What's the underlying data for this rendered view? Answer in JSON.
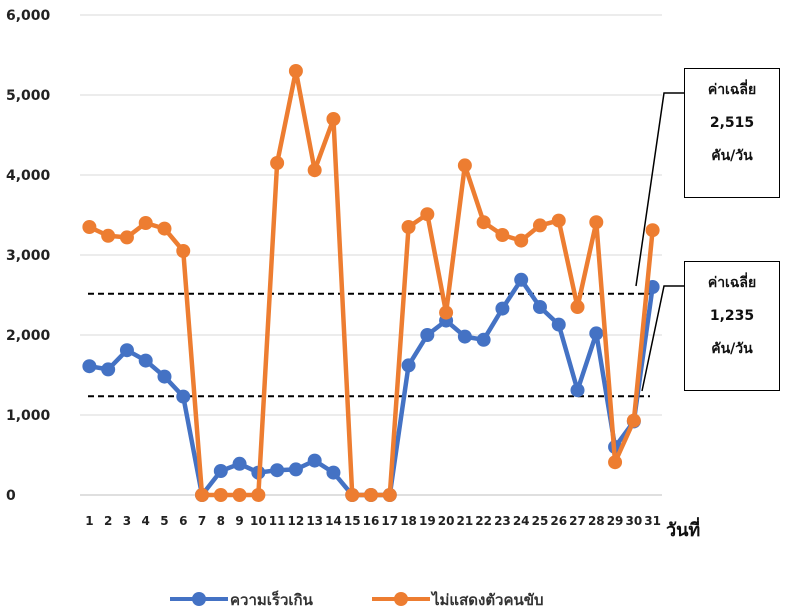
{
  "chart_data": {
    "type": "line",
    "categories": [
      "1",
      "2",
      "3",
      "4",
      "5",
      "6",
      "7",
      "8",
      "9",
      "10",
      "11",
      "12",
      "13",
      "14",
      "15",
      "16",
      "17",
      "18",
      "19",
      "20",
      "21",
      "22",
      "23",
      "24",
      "25",
      "26",
      "27",
      "28",
      "29",
      "30",
      "31"
    ],
    "series": [
      {
        "name": "ความเร็วเกิน",
        "color": "#4472C4",
        "values": [
          1610,
          1570,
          1810,
          1680,
          1480,
          1230,
          0,
          300,
          390,
          280,
          310,
          320,
          430,
          280,
          0,
          0,
          0,
          1620,
          2000,
          2180,
          1980,
          1940,
          2330,
          2690,
          2350,
          2130,
          1310,
          2020,
          600,
          920,
          2600
        ]
      },
      {
        "name": "ไม่แสดงตัวคนขับ",
        "color": "#ED7D31",
        "values": [
          3350,
          3240,
          3220,
          3400,
          3330,
          3050,
          0,
          0,
          0,
          0,
          4150,
          5300,
          4060,
          4700,
          0,
          0,
          0,
          3350,
          3510,
          2280,
          4120,
          3410,
          3250,
          3180,
          3370,
          3430,
          2350,
          3410,
          410,
          930,
          3310
        ]
      }
    ],
    "reference_lines": [
      {
        "value": 2515,
        "label_lines": [
          "ค่าเฉลี่ย",
          "2,515",
          "คัน/วัน"
        ]
      },
      {
        "value": 1235,
        "label_lines": [
          "ค่าเฉลี่ย",
          "1,235",
          "คัน/วัน"
        ]
      }
    ],
    "y_ticks": [
      0,
      1000,
      2000,
      3000,
      4000,
      5000,
      6000
    ],
    "y_tick_labels": [
      "0",
      "1,000",
      "2,000",
      "3,000",
      "4,000",
      "5,000",
      "6,000"
    ],
    "ylim": [
      0,
      6000
    ],
    "xlabel": "วันที่",
    "ylabel": "",
    "grid": true,
    "legend_position": "bottom"
  }
}
